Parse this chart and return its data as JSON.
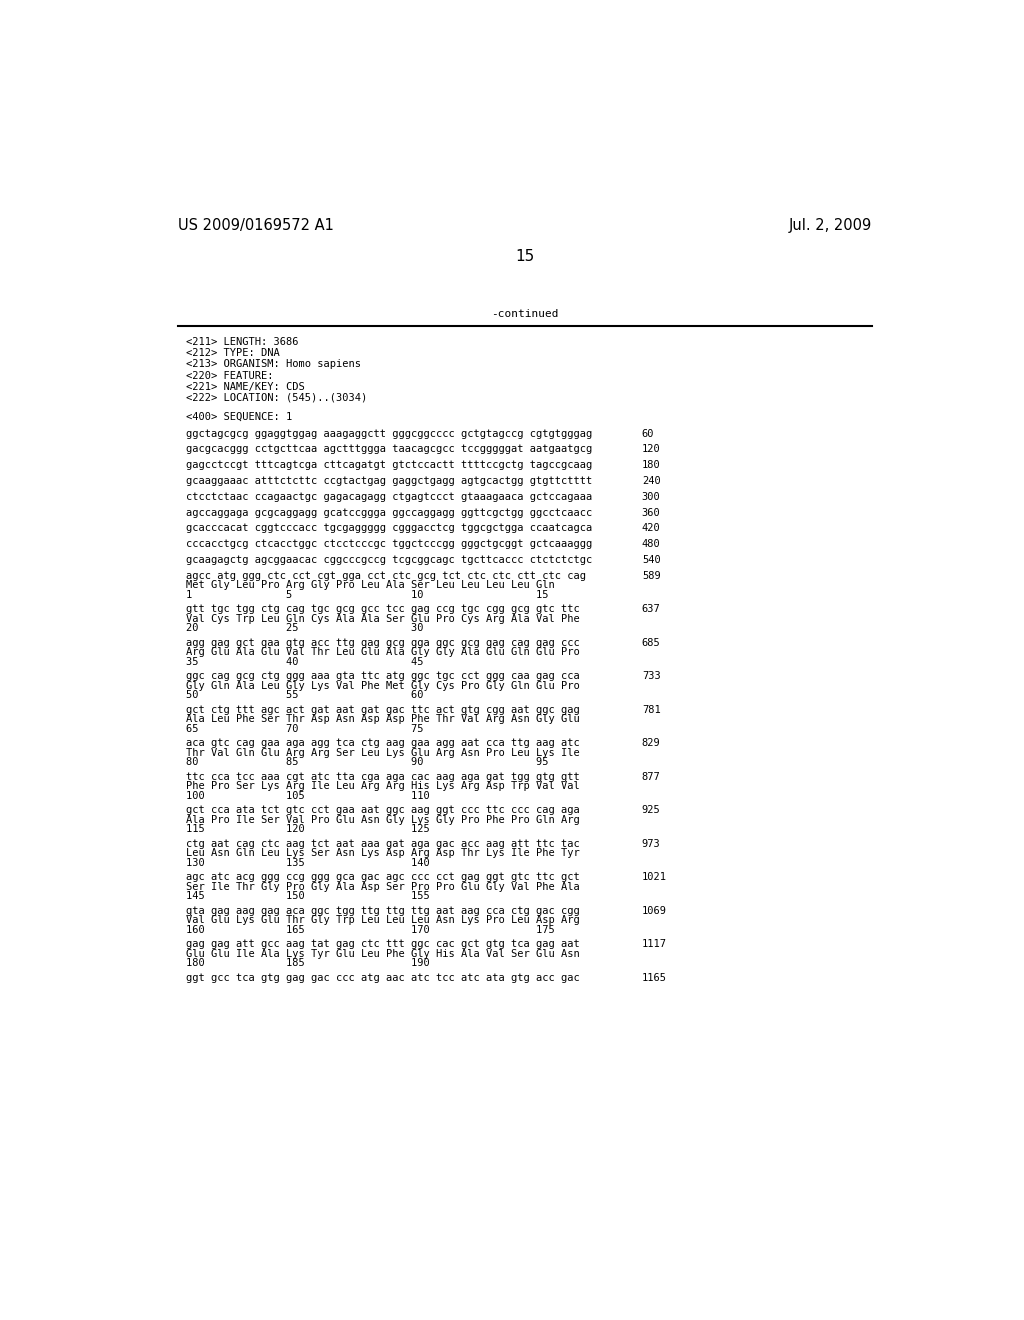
{
  "header_left": "US 2009/0169572 A1",
  "header_right": "Jul. 2, 2009",
  "page_number": "15",
  "continued_label": "-continued",
  "background_color": "#ffffff",
  "text_color": "#000000",
  "meta_lines": [
    "<211> LENGTH: 3686",
    "<212> TYPE: DNA",
    "<213> ORGANISM: Homo sapiens",
    "<220> FEATURE:",
    "<221> NAME/KEY: CDS",
    "<222> LOCATION: (545)..(3034)"
  ],
  "sequence_header": "<400> SEQUENCE: 1",
  "sequence_blocks": [
    {
      "dna": "ggctagcgcg ggaggtggag aaagaggctt gggcggcccc gctgtagccg cgtgtgggag",
      "num": "60"
    },
    {
      "dna": "gacgcacggg cctgcttcaa agctttggga taacagcgcc tccgggggat aatgaatgcg",
      "num": "120"
    },
    {
      "dna": "gagcctccgt tttcagtcga cttcagatgt gtctccactt ttttccgctg tagccgcaag",
      "num": "180"
    },
    {
      "dna": "gcaaggaaac atttctcttc ccgtactgag gaggctgagg agtgcactgg gtgttctttt",
      "num": "240"
    },
    {
      "dna": "ctcctctaac ccagaactgc gagacagagg ctgagtccct gtaaagaaca gctccagaaa",
      "num": "300"
    },
    {
      "dna": "agccaggaga gcgcaggagg gcatccggga ggccaggagg ggttcgctgg ggcctcaacc",
      "num": "360"
    },
    {
      "dna": "gcacccacat cggtcccacc tgcgaggggg cgggacctcg tggcgctgga ccaatcagca",
      "num": "420"
    },
    {
      "dna": "cccacctgcg ctcacctggc ctcctcccgc tggctcccgg gggctgcggt gctcaaaggg",
      "num": "480"
    },
    {
      "dna": "gcaagagctg agcggaacac cggcccgccg tcgcggcagc tgcttcaccc ctctctctgc",
      "num": "540"
    },
    {
      "dna": "agcc atg ggg ctc cct cgt gga cct ctc gcg tct ctc ctc ctt ctc cag",
      "num": "589",
      "aa": "Met Gly Leu Pro Arg Gly Pro Leu Ala Ser Leu Leu Leu Leu Gln",
      "pos": "1               5                   10                  15"
    },
    {
      "dna": "gtt tgc tgg ctg cag tgc gcg gcc tcc gag ccg tgc cgg gcg gtc ttc",
      "num": "637",
      "aa": "Val Cys Trp Leu Gln Cys Ala Ala Ser Glu Pro Cys Arg Ala Val Phe",
      "pos": "20              25                  30"
    },
    {
      "dna": "agg gag gct gaa gtg acc ttg gag gcg gga ggc gcg gag cag gag ccc",
      "num": "685",
      "aa": "Arg Glu Ala Glu Val Thr Leu Glu Ala Gly Gly Ala Glu Gln Glu Pro",
      "pos": "35              40                  45"
    },
    {
      "dna": "ggc cag gcg ctg ggg aaa gta ttc atg ggc tgc cct ggg caa gag cca",
      "num": "733",
      "aa": "Gly Gln Ala Leu Gly Lys Val Phe Met Gly Cys Pro Gly Gln Glu Pro",
      "pos": "50              55                  60"
    },
    {
      "dna": "gct ctg ttt agc act gat aat gat gac ttc act gtg cgg aat ggc gag",
      "num": "781",
      "aa": "Ala Leu Phe Ser Thr Asp Asn Asp Asp Phe Thr Val Arg Asn Gly Glu",
      "pos": "65              70                  75"
    },
    {
      "dna": "aca gtc cag gaa aga agg tca ctg aag gaa agg aat cca ttg aag atc",
      "num": "829",
      "aa": "Thr Val Gln Glu Arg Arg Ser Leu Lys Glu Arg Asn Pro Leu Lys Ile",
      "pos": "80              85                  90                  95"
    },
    {
      "dna": "ttc cca tcc aaa cgt atc tta cga aga cac aag aga gat tgg gtg gtt",
      "num": "877",
      "aa": "Phe Pro Ser Lys Arg Ile Leu Arg Arg His Lys Arg Asp Trp Val Val",
      "pos": "100             105                 110"
    },
    {
      "dna": "gct cca ata tct gtc cct gaa aat ggc aag ggt ccc ttc ccc cag aga",
      "num": "925",
      "aa": "Ala Pro Ile Ser Val Pro Glu Asn Gly Lys Gly Pro Phe Pro Gln Arg",
      "pos": "115             120                 125"
    },
    {
      "dna": "ctg aat cag ctc aag tct aat aaa gat aga gac acc aag att ttc tac",
      "num": "973",
      "aa": "Leu Asn Gln Leu Lys Ser Asn Lys Asp Arg Asp Thr Lys Ile Phe Tyr",
      "pos": "130             135                 140"
    },
    {
      "dna": "agc atc acg ggg ccg ggg gca gac agc ccc cct gag ggt gtc ttc gct",
      "num": "1021",
      "aa": "Ser Ile Thr Gly Pro Gly Ala Asp Ser Pro Pro Glu Gly Val Phe Ala",
      "pos": "145             150                 155"
    },
    {
      "dna": "gta gag aag gag aca ggc tgg ttg ttg ttg aat aag cca ctg gac cgg",
      "num": "1069",
      "aa": "Val Glu Lys Glu Thr Gly Trp Leu Leu Leu Asn Lys Pro Leu Asp Arg",
      "pos": "160             165                 170                 175"
    },
    {
      "dna": "gag gag att gcc aag tat gag ctc ttt ggc cac gct gtg tca gag aat",
      "num": "1117",
      "aa": "Glu Glu Ile Ala Lys Tyr Glu Leu Phe Gly His Ala Val Ser Glu Asn",
      "pos": "180             185                 190"
    },
    {
      "dna": "ggt gcc tca gtg gag gac ccc atg aac atc tcc atc ata gtg acc gac",
      "num": "1165"
    }
  ]
}
